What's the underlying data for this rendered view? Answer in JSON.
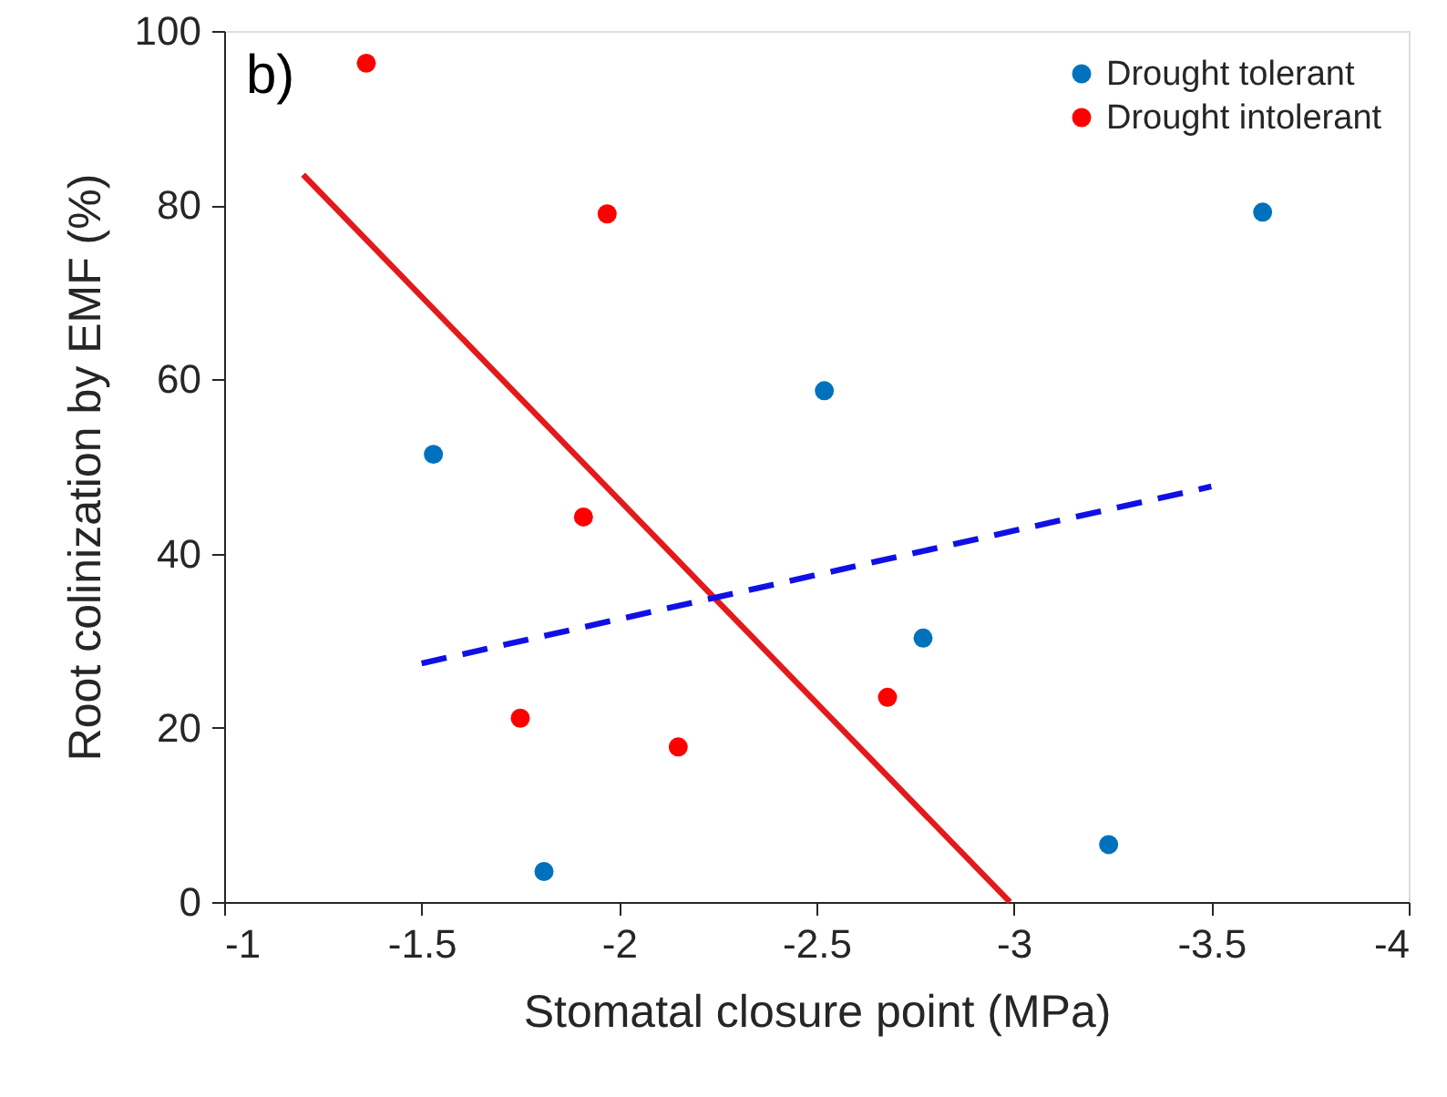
{
  "chart_data": {
    "type": "scatter",
    "xlabel": "Stomatal closure point (MPa)",
    "ylabel": "Root colinization by EMF (%)",
    "annotations": [
      "b)"
    ],
    "xlim": [
      -1,
      -4
    ],
    "xticks": [
      -1,
      -1.5,
      -2,
      -2.5,
      -3,
      -3.5,
      -4
    ],
    "ylim": [
      0,
      100
    ],
    "yticks": [
      0,
      20,
      40,
      60,
      80,
      100
    ],
    "grid": false,
    "legend": "top right",
    "marker": "circle",
    "series": [
      {
        "name": "Drought tolerant",
        "color": "#0072bd",
        "x": [
          -1.53,
          -1.81,
          -2.52,
          -2.77,
          -3.24,
          -3.63
        ],
        "values": [
          51.4,
          3.5,
          58.7,
          30.3,
          6.6,
          79.2
        ]
      },
      {
        "name": "Drought intolerant",
        "color": "#ff0000",
        "x": [
          -1.36,
          -1.97,
          -1.91,
          -1.75,
          -2.15,
          -2.68
        ],
        "values": [
          96.3,
          79.0,
          44.2,
          21.1,
          17.8,
          23.5
        ]
      },
      {
        "type": "line",
        "color": "#e3191c",
        "line_style": "solid",
        "marker": "none",
        "x": [
          -1.2,
          -2.99
        ],
        "values": [
          83.5,
          0
        ]
      },
      {
        "type": "line",
        "color": "#1010e6",
        "line_style": "dashed",
        "marker": "none",
        "x": [
          -1.5,
          -3.5
        ],
        "values": [
          27.4,
          47.7
        ]
      }
    ]
  }
}
